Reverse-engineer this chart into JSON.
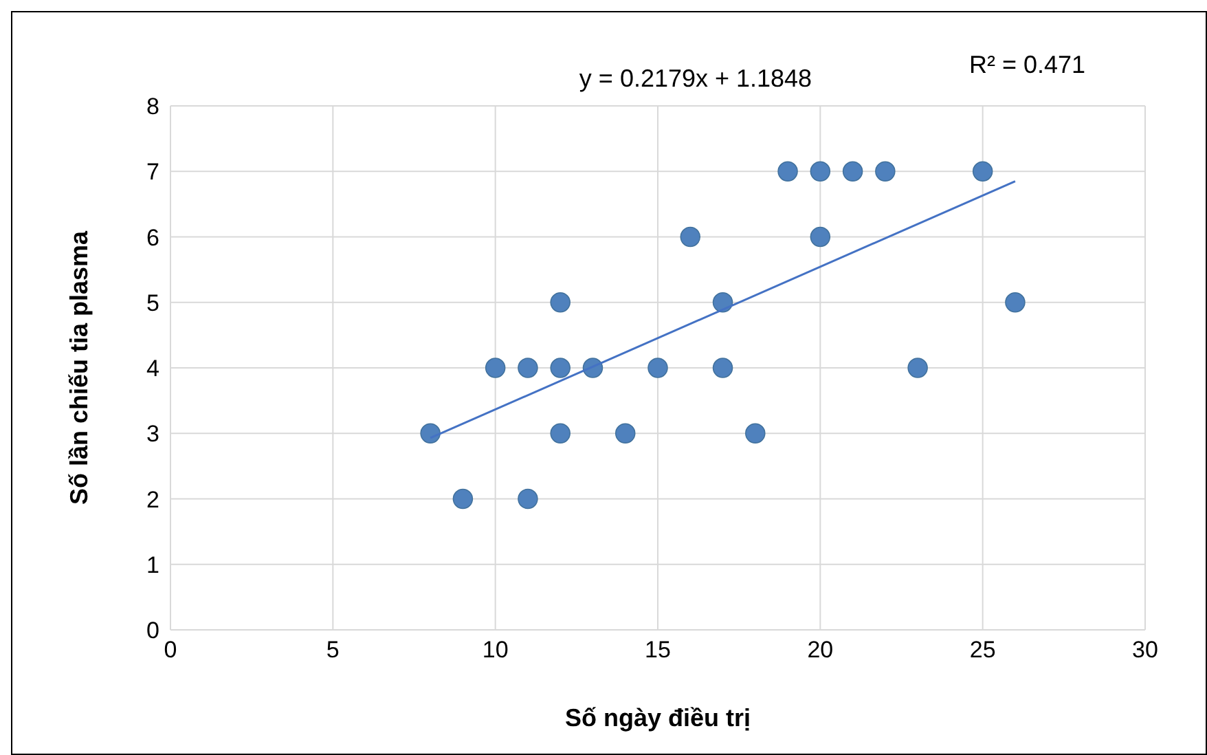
{
  "chart_data": {
    "type": "scatter",
    "xlabel": "Số ngày điều trị",
    "ylabel": "Số lần chiếu tia plasma",
    "annotations": [
      "y = 0.2179x + 1.1848",
      "R² = 0.471"
    ],
    "series": [
      {
        "color": "#4f81bd",
        "marker": "circle",
        "x": [
          8,
          9,
          10,
          11,
          11,
          12,
          12,
          12,
          13,
          14,
          15,
          16,
          17,
          17,
          18,
          19,
          20,
          20,
          21,
          22,
          23,
          25,
          26
        ],
        "values": [
          3,
          2,
          4,
          4,
          2,
          5,
          4,
          3,
          4,
          3,
          4,
          6,
          5,
          4,
          3,
          7,
          7,
          6,
          7,
          7,
          4,
          7,
          5
        ]
      },
      {
        "type": "line",
        "color": "#4472c4",
        "marker": "none",
        "x": [
          8,
          26
        ],
        "values": [
          2.93,
          6.85
        ]
      }
    ],
    "xlim": [
      0,
      30
    ],
    "xticks": [
      0,
      5,
      10,
      15,
      20,
      25,
      30
    ],
    "ylim": [
      0,
      8
    ],
    "yticks": [
      0,
      1,
      2,
      3,
      4,
      5,
      6,
      7,
      8
    ],
    "grid": true
  }
}
